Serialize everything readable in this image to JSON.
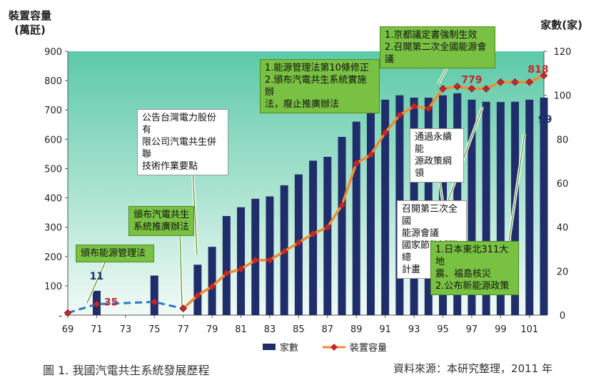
{
  "labels": {
    "y_left": "裝置容量\n(萬瓩)",
    "y_right": "家數(家)",
    "caption": "圖 1. 我國汽電共生系統發展歷程",
    "source": "資料來源：本研究整理，2011 年"
  },
  "chart_data": {
    "type": "bar+line",
    "categories": [
      "69",
      "70",
      "71",
      "72",
      "73",
      "74",
      "75",
      "76",
      "77",
      "78",
      "79",
      "80",
      "81",
      "82",
      "83",
      "84",
      "85",
      "86",
      "87",
      "88",
      "89",
      "90",
      "91",
      "92",
      "93",
      "94",
      "95",
      "96",
      "97",
      "98",
      "99",
      "100",
      "101",
      "102"
    ],
    "x_tick_labels": [
      "69",
      "71",
      "73",
      "75",
      "77",
      "79",
      "81",
      "83",
      "85",
      "87",
      "89",
      "91",
      "93",
      "95",
      "97",
      "99",
      "101"
    ],
    "left_axis": {
      "min": 0,
      "max": 900,
      "ticks": [
        "-",
        "100",
        "200",
        "300",
        "400",
        "500",
        "600",
        "700",
        "800",
        "900"
      ]
    },
    "right_axis": {
      "min": 0,
      "max": 120,
      "ticks": [
        "0",
        "20",
        "40",
        "60",
        "80",
        "100",
        "120"
      ]
    },
    "series": [
      {
        "name": "家數",
        "type": "bar",
        "axis": "left",
        "color": "#1f2d6b",
        "values": [
          null,
          null,
          83,
          null,
          null,
          null,
          135,
          null,
          null,
          172,
          233,
          338,
          368,
          397,
          405,
          443,
          480,
          527,
          540,
          608,
          660,
          700,
          735,
          750,
          742,
          742,
          750,
          757,
          735,
          728,
          727,
          728,
          735,
          742
        ]
      },
      {
        "name": "裝置容量",
        "type": "line",
        "axis": "right",
        "color": "#f28a30",
        "dashed_until_index": 8,
        "values": [
          1,
          null,
          5,
          null,
          null,
          null,
          6,
          null,
          3,
          9,
          13,
          19,
          21,
          25,
          25,
          29,
          33,
          37,
          40,
          50,
          69,
          73,
          83,
          91,
          95,
          94,
          103,
          104,
          103,
          103,
          106,
          106,
          106,
          109
        ]
      }
    ],
    "data_labels": [
      {
        "x": "71",
        "text": "11",
        "color": "#1f2d6b"
      },
      {
        "x": "72",
        "text": "35",
        "color": "#c0282d"
      },
      {
        "x": "97",
        "text": "779",
        "color": "#c0282d"
      },
      {
        "x": "102",
        "text": "818",
        "color": "#c0282d"
      },
      {
        "x": "101",
        "text": "99",
        "color": "#1f2d6b"
      }
    ],
    "annotations": [
      {
        "id": "a1",
        "text": "頒布能源管理法",
        "style": "green"
      },
      {
        "id": "a2",
        "text": "頒布汽電共生\n系統推廣辦法",
        "style": "green"
      },
      {
        "id": "a3",
        "text": "公告台灣電力股份有\n限公司汽電共生併聯\n技術作業要點",
        "style": "white"
      },
      {
        "id": "a4",
        "text": "1.能源管理法第10條修正\n2.頒布汽電共生系統實施辦\n   法，廢止推廣辦法",
        "style": "green"
      },
      {
        "id": "a5",
        "text": "1.京都議定書強制生效\n2.召開第二次全國能源會議",
        "style": "green"
      },
      {
        "id": "a6",
        "text": "通過永續能\n源政策綱領",
        "style": "white"
      },
      {
        "id": "a7",
        "text": "召開第三次全國\n能源會議\n國家節能減碳總\n計畫",
        "style": "white"
      },
      {
        "id": "a8",
        "text": "1.日本東北311大地\n   震、福島核災\n2.公布新能源政策",
        "style": "green"
      }
    ],
    "legend": {
      "position": "bottom",
      "items": [
        "家數",
        "裝置容量"
      ]
    },
    "grid": false
  }
}
